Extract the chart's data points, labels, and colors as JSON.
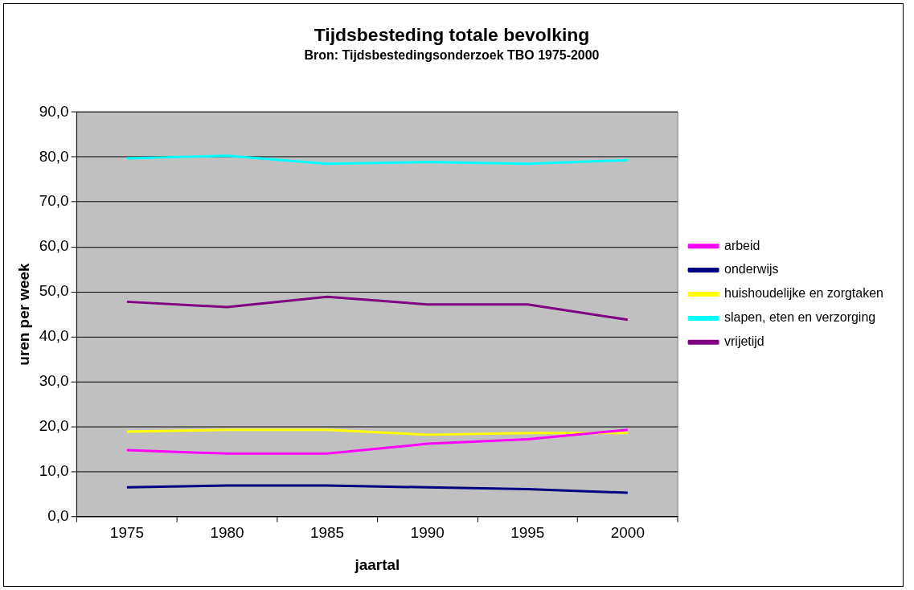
{
  "chart_data": {
    "type": "line",
    "title": "Tijdsbesteding totale bevolking",
    "subtitle": "Bron: Tijdsbestedingsonderzoek TBO 1975-2000",
    "xlabel": "jaartal",
    "ylabel": "uren per week",
    "categories": [
      "1975",
      "1980",
      "1985",
      "1990",
      "1995",
      "2000"
    ],
    "series": [
      {
        "name": "arbeid",
        "color": "#ff00ff",
        "values": [
          14.8,
          14.0,
          14.0,
          16.2,
          17.2,
          19.3
        ]
      },
      {
        "name": "onderwijs",
        "color": "#000080",
        "values": [
          6.5,
          6.9,
          6.9,
          6.5,
          6.1,
          5.3
        ]
      },
      {
        "name": "huishoudelijke en zorgtaken",
        "color": "#ffff00",
        "values": [
          18.9,
          19.3,
          19.3,
          18.2,
          18.6,
          18.6
        ]
      },
      {
        "name": "slapen, eten en verzorging",
        "color": "#00ffff",
        "values": [
          79.7,
          80.3,
          78.5,
          78.9,
          78.5,
          79.3
        ]
      },
      {
        "name": "vrijetijd",
        "color": "#800080",
        "values": [
          47.8,
          46.6,
          48.9,
          47.2,
          47.2,
          43.8
        ]
      }
    ],
    "ylim": [
      0,
      90
    ],
    "yticks": [
      {
        "value": 0,
        "label": "0,0"
      },
      {
        "value": 10,
        "label": "10,0"
      },
      {
        "value": 20,
        "label": "20,0"
      },
      {
        "value": 30,
        "label": "30,0"
      },
      {
        "value": 40,
        "label": "40,0"
      },
      {
        "value": 50,
        "label": "50,0"
      },
      {
        "value": 60,
        "label": "60,0"
      },
      {
        "value": 70,
        "label": "70,0"
      },
      {
        "value": 80,
        "label": "80,0"
      },
      {
        "value": 90,
        "label": "90,0"
      }
    ],
    "grid": "y",
    "legend": "right",
    "marker": "none",
    "line_style": "solid"
  }
}
